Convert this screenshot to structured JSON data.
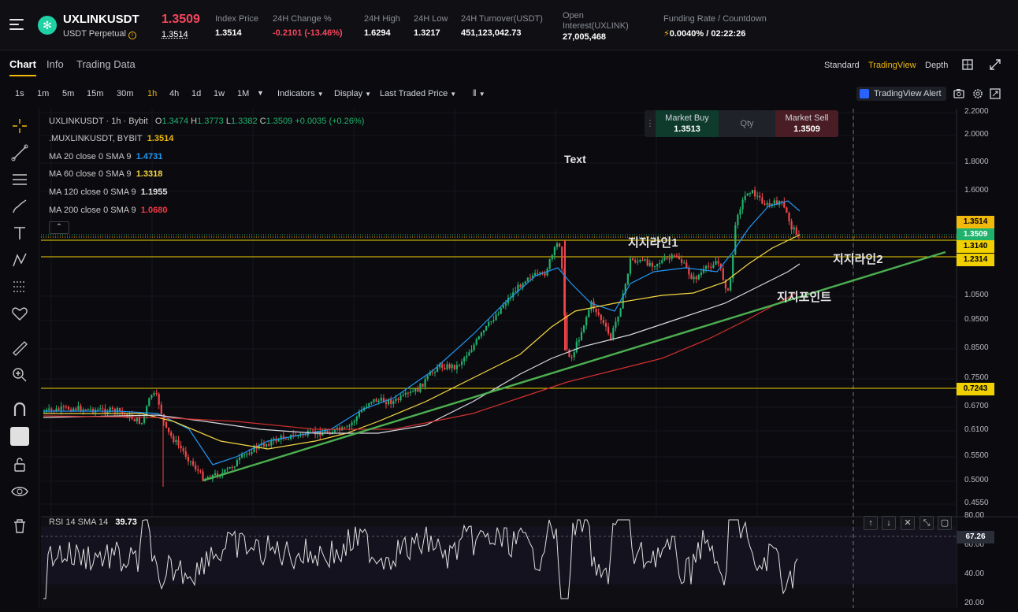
{
  "header": {
    "symbol": "UXLINKUSDT",
    "contract": "USDT Perpetual",
    "last_price": "1.3509",
    "mark_price": "1.3514",
    "stats": [
      {
        "label": "Index Price",
        "value": "1.3514"
      },
      {
        "label": "24H Change %",
        "value": "-0.2101 (-13.46%)"
      },
      {
        "label": "24H High",
        "value": "1.6294"
      },
      {
        "label": "24H Low",
        "value": "1.3217"
      },
      {
        "label": "24H Turnover(USDT)",
        "value": "451,123,042.73"
      },
      {
        "label": "Open Interest(UXLINK)",
        "value": "27,005,468"
      },
      {
        "label": "Funding Rate / Countdown",
        "value": "0.0040% / 02:22:26"
      }
    ]
  },
  "tabs": [
    "Chart",
    "Info",
    "Trading Data"
  ],
  "views": [
    "Standard",
    "TradingView",
    "Depth"
  ],
  "toolbar": {
    "intervals": [
      "1s",
      "1m",
      "5m",
      "15m",
      "30m",
      "1h",
      "4h",
      "1d",
      "1w",
      "1M"
    ],
    "active_interval": "1h",
    "indicators": "Indicators",
    "display": "Display",
    "price_type": "Last Traded Price",
    "alert": "TradingView Alert"
  },
  "legend": {
    "main": "UXLINKUSDT · 1h · Bybit",
    "ohlc": {
      "o": "1.3474",
      "h": "1.3773",
      "l": "1.3382",
      "c": "1.3509",
      "chg": "+0.0035 (+0.26%)"
    },
    "mux": {
      "label": ".MUXLINKUSDT, BYBIT",
      "value": "1.3514"
    },
    "ma": [
      {
        "label": "MA 20 close 0 SMA 9",
        "value": "1.4731",
        "color": "#2196f3"
      },
      {
        "label": "MA 60 close 0 SMA 9",
        "value": "1.3318",
        "color": "#f5d742"
      },
      {
        "label": "MA 120 close 0 SMA 9",
        "value": "1.1955",
        "color": "#e0e0e0"
      },
      {
        "label": "MA 200 close 0 SMA 9",
        "value": "1.0680",
        "color": "#f23645"
      }
    ]
  },
  "trade": {
    "buy_label": "Market Buy",
    "buy_price": "1.3513",
    "qty": "Qty",
    "sell_label": "Market Sell",
    "sell_price": "1.3509"
  },
  "annotations": {
    "text": "Text",
    "support1": "지지라인1",
    "support2": "지지라인2",
    "support_point": "지지포인트"
  },
  "price_axis": [
    "2.2000",
    "2.0000",
    "1.8000",
    "1.6000",
    "1.0500",
    "0.9500",
    "0.8500",
    "0.7500",
    "0.6700",
    "0.6100",
    "0.5500",
    "0.5000",
    "0.4550"
  ],
  "price_labels": [
    {
      "value": "1.3514",
      "bg": "#f0b90b",
      "fg": "#000"
    },
    {
      "value": "1.3509",
      "bg": "#20b26c",
      "fg": "#fff"
    },
    {
      "value": "1.3140",
      "bg": "#f0d000",
      "fg": "#000"
    },
    {
      "value": "1.2314",
      "bg": "#f0d000",
      "fg": "#000"
    },
    {
      "value": "0.7243",
      "bg": "#f0d000",
      "fg": "#000"
    }
  ],
  "rsi": {
    "label": "RSI 14 SMA 14",
    "value": "39.73",
    "level": "67.26",
    "axis": [
      "80.00",
      "60.00",
      "40.00",
      "20.00"
    ]
  }
}
